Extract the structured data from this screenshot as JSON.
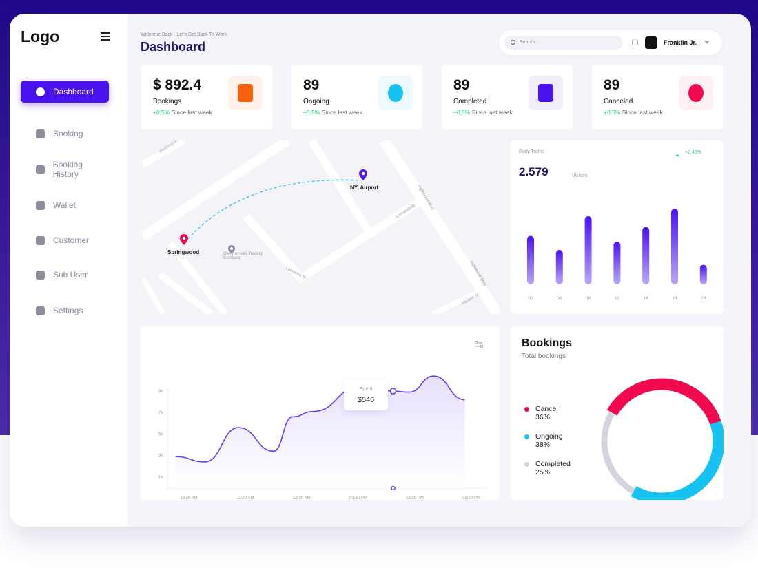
{
  "sidebar": {
    "logo": "Logo",
    "items": [
      {
        "label": "Dashboard",
        "icon": "pie-chart-icon",
        "active": true
      },
      {
        "label": "Booking",
        "icon": "document-icon"
      },
      {
        "label": "Booking History",
        "icon": "history-icon"
      },
      {
        "label": "Wallet",
        "icon": "wallet-icon"
      },
      {
        "label": "Customer",
        "icon": "user-icon"
      },
      {
        "label": "Sub User",
        "icon": "phone-icon"
      },
      {
        "label": "Settings",
        "icon": "gear-icon"
      }
    ]
  },
  "header": {
    "welcome": "Welcome Back , Let's Get Back To Work",
    "title": "Dashboard",
    "search_placeholder": "Search .",
    "user": "Franklin Jr."
  },
  "stats": [
    {
      "value": "$ 892.4",
      "label": "Bookings",
      "change": "+0,5%",
      "since": "Since last week",
      "icon": "document-icon",
      "color": "#f5620f",
      "bg": "#fff1ea"
    },
    {
      "value": "89",
      "label": "Ongoing",
      "change": "+0,5%",
      "since": "Since last week",
      "icon": "user-icon",
      "color": "#17c2f0",
      "bg": "#eef9fe"
    },
    {
      "value": "89",
      "label": "Completed",
      "change": "+0,5%",
      "since": "Since last week",
      "icon": "sort-arrows-icon",
      "color": "#4b12f0",
      "bg": "#f0eefc"
    },
    {
      "value": "89",
      "label": "Canceled",
      "change": "+0,5%",
      "since": "Since last week",
      "icon": "pie-chart-icon",
      "color": "#f0094f",
      "bg": "#fff0f4"
    }
  ],
  "map": {
    "origin": "Springwood",
    "destination": "NY, Airport",
    "poi": "Oak (ra+nail) Trading Company",
    "streets": [
      "Washington",
      "Lamanda St",
      "Lamanda St",
      "Inglewood Blvd",
      "Inglewood Blvd",
      "Herbert St"
    ]
  },
  "chart_data": [
    {
      "type": "bar",
      "title": "Daily Traffic",
      "value": "2.579",
      "unit": "Visitors",
      "change": "+2.45%",
      "categories": [
        "00",
        "04",
        "08",
        "12",
        "14",
        "16",
        "18"
      ],
      "values": [
        72,
        51,
        101,
        63,
        85,
        112,
        29
      ],
      "color": "#4b12f0"
    },
    {
      "type": "area",
      "x_ticks": [
        "10:30 AM",
        "11:30 AM",
        "12:30 AM",
        "01:30 PM",
        "02:30 PM",
        "03:30 PM"
      ],
      "y_ticks": [
        "9k",
        "7k",
        "5k",
        "3k",
        "1k"
      ],
      "ylim": [
        1,
        9
      ],
      "points": [
        [
          "10:16",
          2.9
        ],
        [
          "10:47",
          2.4
        ],
        [
          "11:23",
          5.6
        ],
        [
          "12:00",
          3.4
        ],
        [
          "12:20",
          6.6
        ],
        [
          "12:42",
          7.1
        ],
        [
          "13:33",
          9.5
        ],
        [
          "14:07",
          9.0
        ],
        [
          "14:24",
          8.9
        ],
        [
          "14:50",
          10.4
        ],
        [
          "15:23",
          8.2
        ]
      ],
      "tooltip": {
        "label": "Spent",
        "value": "$546"
      },
      "color": "#6a3cf5"
    },
    {
      "type": "pie",
      "title": "Bookings",
      "subtitle": "Total bookings",
      "slices": [
        {
          "name": "Cancel",
          "pct": "36%",
          "value": 36,
          "color": "#f0094f"
        },
        {
          "name": "Ongoing",
          "pct": "38%",
          "value": 38,
          "color": "#17c2f0"
        },
        {
          "name": "Completed",
          "pct": "25%",
          "value": 25,
          "color": "#d4d4de"
        }
      ]
    }
  ]
}
